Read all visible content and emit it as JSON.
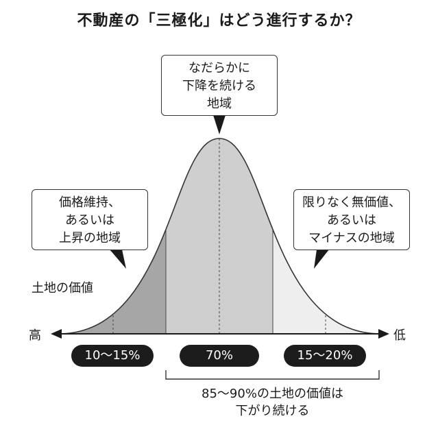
{
  "title": "不動産の「三極化」はどう進行するか？",
  "callouts": {
    "center": "なだらかに\n下降を続ける\n地域",
    "left": "価格維持、\nあるいは\n上昇の地域",
    "right": "限りなく無価値、\nあるいは\nマイナスの地域"
  },
  "axis": {
    "y_label": "土地の価値",
    "high_label": "高",
    "low_label": "低"
  },
  "segments": [
    {
      "label": "10～15%",
      "color": "#a6a6a6"
    },
    {
      "label": "70%",
      "color": "#cfcfcf"
    },
    {
      "label": "15～20%",
      "color": "#eeeeee"
    }
  ],
  "bracket_note": "85～90%の土地の価値は\n下がり続ける"
}
